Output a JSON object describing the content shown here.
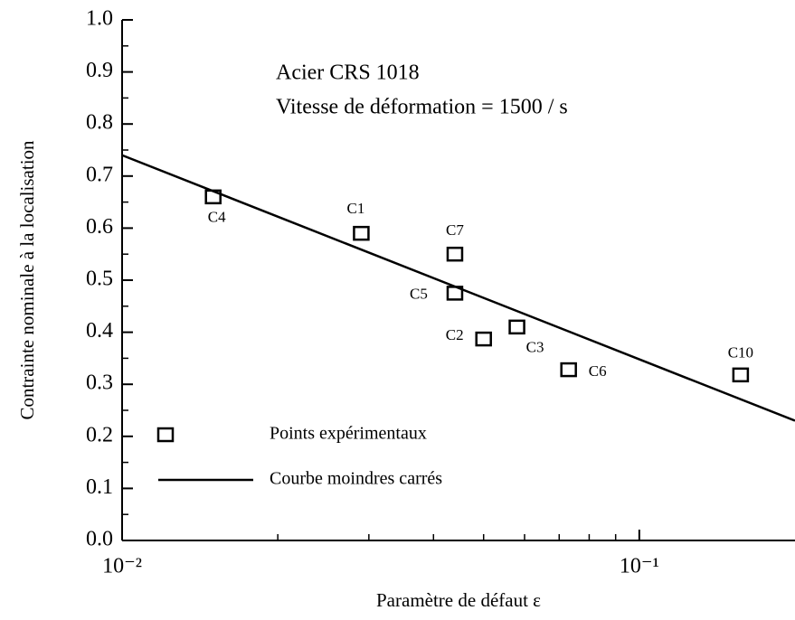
{
  "chart_data": {
    "type": "scatter",
    "xlabel": "Paramètre de défaut ε",
    "ylabel": "Contrainte nominale à la localisation",
    "annotations": [
      "Acier CRS 1018",
      "Vitesse de déformation = 1500 / s"
    ],
    "xscale": "log",
    "xlim": [
      0.01,
      0.2
    ],
    "ylim": [
      0,
      1
    ],
    "xticks": [
      {
        "value": 0.01,
        "label": "10⁻²"
      },
      {
        "value": 0.1,
        "label": "10⁻¹"
      }
    ],
    "yticks": [
      {
        "value": 0,
        "label": "0.0"
      },
      0.1,
      0.2,
      0.3,
      0.4,
      0.5,
      0.6,
      0.7,
      0.8,
      0.9,
      {
        "value": 1,
        "label": "1.0"
      }
    ],
    "legend": "lower left",
    "series": [
      {
        "name": "Points expérimentaux",
        "type": "scatter",
        "color": "#000000",
        "labels": [
          "C4",
          "C1",
          "C7",
          "C5",
          "C2",
          "C3",
          "C6",
          "C10"
        ],
        "x": [
          0.015,
          0.029,
          0.044,
          0.044,
          0.05,
          0.058,
          0.073,
          0.157
        ],
        "values": [
          0.66,
          0.59,
          0.55,
          0.475,
          0.387,
          0.41,
          0.328,
          0.318
        ]
      },
      {
        "name": "Courbe moindres carrés",
        "type": "line",
        "color": "#000000",
        "x": [
          0.01,
          0.2
        ],
        "values": [
          0.74,
          0.23
        ]
      }
    ]
  }
}
